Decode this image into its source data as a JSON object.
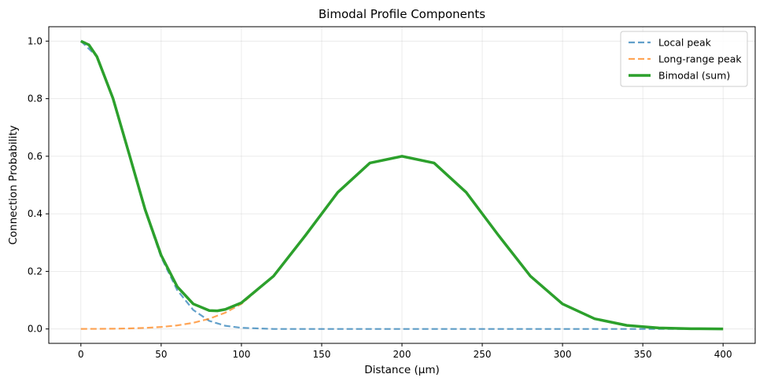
{
  "chart_data": {
    "type": "line",
    "title": "Bimodal Profile Components",
    "xlabel": "Distance (µm)",
    "ylabel": "Connection Probability",
    "xlim": [
      -20,
      420
    ],
    "ylim": [
      -0.05,
      1.05
    ],
    "xticks": [
      "0",
      "50",
      "100",
      "150",
      "200",
      "250",
      "300",
      "350",
      "400"
    ],
    "yticks": [
      "0.0",
      "0.2",
      "0.4",
      "0.6",
      "0.8",
      "1.0"
    ],
    "grid": true,
    "legend_position": "top-right",
    "series": [
      {
        "name": "Local peak",
        "style": "dashed",
        "color": "#1f77b4",
        "x": [
          0,
          10,
          20,
          30,
          40,
          50,
          60,
          70,
          80,
          90,
          100,
          120,
          150,
          200,
          250,
          300,
          350,
          400
        ],
        "y": [
          1.0,
          0.946,
          0.8,
          0.607,
          0.411,
          0.249,
          0.135,
          0.066,
          0.028,
          0.011,
          0.004,
          0.0,
          0.0,
          0.0,
          0.0,
          0.0,
          0.0,
          0.0
        ]
      },
      {
        "name": "Long-range peak",
        "style": "dashed",
        "color": "#ff7f0e",
        "x": [
          0,
          10,
          20,
          30,
          40,
          50,
          60,
          70,
          80,
          90,
          100,
          120,
          140,
          160,
          180,
          200,
          220,
          240,
          260,
          280,
          300,
          320,
          340,
          360,
          380,
          400
        ],
        "y": [
          0.0002,
          0.0004,
          0.0009,
          0.0019,
          0.0037,
          0.0069,
          0.0124,
          0.0214,
          0.0355,
          0.0567,
          0.0869,
          0.1835,
          0.326,
          0.4746,
          0.5765,
          0.6,
          0.5765,
          0.4746,
          0.326,
          0.1835,
          0.0869,
          0.0355,
          0.0124,
          0.0037,
          0.0009,
          0.0002
        ]
      },
      {
        "name": "Bimodal (sum)",
        "style": "solid",
        "color": "#2ca02c",
        "x": [
          0,
          5,
          10,
          20,
          30,
          40,
          50,
          60,
          70,
          80,
          85,
          90,
          100,
          120,
          140,
          160,
          180,
          200,
          220,
          240,
          260,
          280,
          300,
          320,
          340,
          360,
          380,
          400
        ],
        "y": [
          1.0,
          0.987,
          0.946,
          0.801,
          0.609,
          0.415,
          0.256,
          0.147,
          0.087,
          0.064,
          0.063,
          0.068,
          0.091,
          0.1835,
          0.326,
          0.4746,
          0.5765,
          0.6,
          0.5765,
          0.4746,
          0.326,
          0.1835,
          0.0869,
          0.0355,
          0.0124,
          0.0037,
          0.0009,
          0.0002
        ]
      }
    ]
  }
}
